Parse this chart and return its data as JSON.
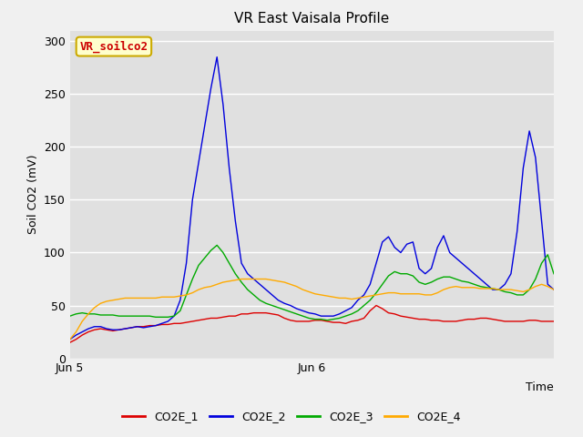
{
  "title": "VR East Vaisala Profile",
  "ylabel": "Soil CO2 (mV)",
  "xlabel": "Time",
  "ylim": [
    0,
    310
  ],
  "yticks": [
    0,
    50,
    100,
    150,
    200,
    250,
    300
  ],
  "annotation_label": "VR_soilco2",
  "annotation_color": "#cc0000",
  "annotation_bg": "#ffffcc",
  "annotation_edge": "#ccaa00",
  "fig_bg": "#f0f0f0",
  "plot_bg": "#e0e0e0",
  "grid_color": "#ffffff",
  "line_colors": {
    "CO2E_1": "#dd0000",
    "CO2E_2": "#0000dd",
    "CO2E_3": "#00aa00",
    "CO2E_4": "#ffaa00"
  },
  "series": {
    "CO2E_1": [
      15,
      18,
      22,
      25,
      27,
      28,
      27,
      26,
      27,
      28,
      29,
      30,
      30,
      31,
      31,
      32,
      32,
      33,
      33,
      34,
      35,
      36,
      37,
      38,
      38,
      39,
      40,
      40,
      42,
      42,
      43,
      43,
      43,
      42,
      41,
      38,
      36,
      35,
      35,
      35,
      36,
      36,
      35,
      34,
      34,
      33,
      35,
      36,
      38,
      45,
      50,
      47,
      43,
      42,
      40,
      39,
      38,
      37,
      37,
      36,
      36,
      35,
      35,
      35,
      36,
      37,
      37,
      38,
      38,
      37,
      36,
      35,
      35,
      35,
      35,
      36,
      36,
      35,
      35,
      35
    ],
    "CO2E_2": [
      18,
      22,
      25,
      28,
      30,
      30,
      28,
      27,
      27,
      28,
      29,
      30,
      29,
      30,
      31,
      33,
      35,
      40,
      55,
      90,
      150,
      185,
      220,
      255,
      285,
      240,
      180,
      130,
      90,
      80,
      75,
      70,
      65,
      60,
      55,
      52,
      50,
      47,
      45,
      43,
      42,
      40,
      40,
      40,
      42,
      45,
      48,
      55,
      60,
      70,
      90,
      110,
      115,
      105,
      100,
      108,
      110,
      85,
      80,
      85,
      105,
      116,
      100,
      95,
      90,
      85,
      80,
      75,
      70,
      65,
      65,
      70,
      80,
      120,
      180,
      215,
      190,
      130,
      70,
      65
    ],
    "CO2E_3": [
      40,
      42,
      43,
      42,
      42,
      41,
      41,
      41,
      40,
      40,
      40,
      40,
      40,
      40,
      39,
      39,
      39,
      40,
      45,
      60,
      75,
      88,
      95,
      102,
      107,
      100,
      90,
      80,
      72,
      65,
      60,
      55,
      52,
      50,
      48,
      46,
      44,
      42,
      40,
      38,
      37,
      37,
      36,
      37,
      38,
      40,
      42,
      45,
      50,
      55,
      62,
      70,
      78,
      82,
      80,
      80,
      78,
      72,
      70,
      72,
      75,
      77,
      77,
      75,
      73,
      72,
      70,
      68,
      67,
      66,
      65,
      63,
      62,
      60,
      60,
      65,
      75,
      90,
      98,
      80
    ],
    "CO2E_4": [
      18,
      25,
      35,
      42,
      48,
      52,
      54,
      55,
      56,
      57,
      57,
      57,
      57,
      57,
      57,
      58,
      58,
      58,
      59,
      60,
      62,
      65,
      67,
      68,
      70,
      72,
      73,
      74,
      75,
      75,
      75,
      75,
      75,
      74,
      73,
      72,
      70,
      68,
      65,
      63,
      61,
      60,
      59,
      58,
      57,
      57,
      56,
      57,
      58,
      59,
      60,
      61,
      62,
      62,
      61,
      61,
      61,
      61,
      60,
      60,
      62,
      65,
      67,
      68,
      67,
      67,
      67,
      66,
      66,
      66,
      65,
      65,
      65,
      64,
      63,
      65,
      68,
      70,
      68,
      65
    ]
  }
}
